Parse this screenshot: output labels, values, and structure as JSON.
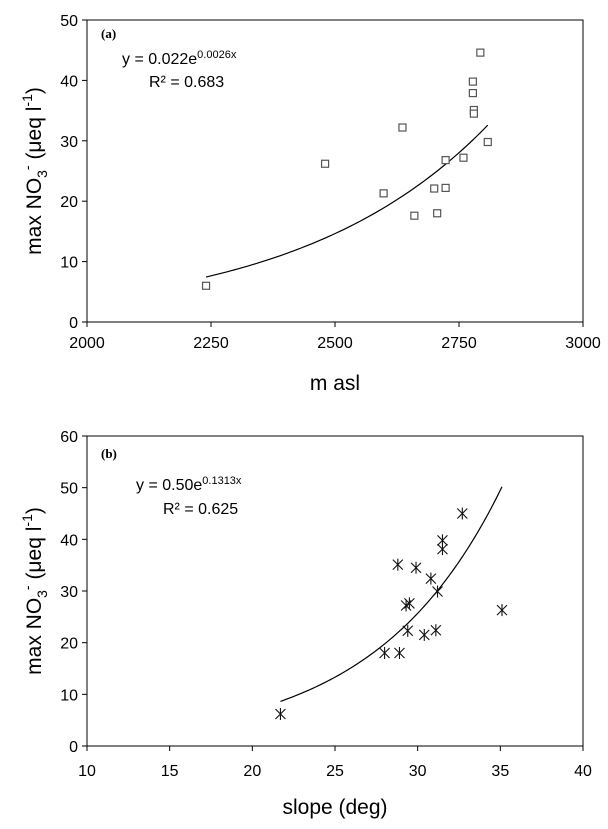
{
  "chart_data": [
    {
      "type": "scatter",
      "panel_label": "(a)",
      "xlabel": "m asl",
      "ylabel": {
        "base": "max NO",
        "sub": "3",
        "sup": "-",
        "rest": " (μeq l",
        "rest_sup": "-1",
        "close": ")"
      },
      "xlim": [
        2000,
        3000
      ],
      "ylim": [
        0,
        50
      ],
      "xticks": [
        2000,
        2250,
        2500,
        2750,
        3000
      ],
      "yticks": [
        0,
        10,
        20,
        30,
        40,
        50
      ],
      "grid": false,
      "marker": "square",
      "points": [
        {
          "x": 2240,
          "y": 6
        },
        {
          "x": 2480,
          "y": 26.2
        },
        {
          "x": 2598,
          "y": 21.3
        },
        {
          "x": 2636,
          "y": 32.2
        },
        {
          "x": 2660,
          "y": 17.6
        },
        {
          "x": 2700,
          "y": 22.1
        },
        {
          "x": 2706,
          "y": 18
        },
        {
          "x": 2723,
          "y": 26.8
        },
        {
          "x": 2723,
          "y": 22.2
        },
        {
          "x": 2759,
          "y": 27.2
        },
        {
          "x": 2778,
          "y": 39.8
        },
        {
          "x": 2778,
          "y": 37.9
        },
        {
          "x": 2780,
          "y": 35.1
        },
        {
          "x": 2780,
          "y": 34.5
        },
        {
          "x": 2793,
          "y": 44.6
        },
        {
          "x": 2808,
          "y": 29.8
        }
      ],
      "trendline": {
        "type": "exponential",
        "a": 0.022,
        "b": 0.0026,
        "x_from": 2240,
        "x_to": 2808
      },
      "equation": {
        "lhs": "y = 0.022e",
        "exp": "0.0026x",
        "r2": "R² = 0.683"
      }
    },
    {
      "type": "scatter",
      "panel_label": "(b)",
      "xlabel": "slope (deg)",
      "ylabel": {
        "base": "max NO",
        "sub": "3",
        "sup": "-",
        "rest": " (μeq l",
        "rest_sup": "-1",
        "close": ")"
      },
      "xlim": [
        10,
        40
      ],
      "ylim": [
        0,
        60
      ],
      "xticks": [
        10,
        15,
        20,
        25,
        30,
        35,
        40
      ],
      "yticks": [
        0,
        10,
        20,
        30,
        40,
        50,
        60
      ],
      "grid": false,
      "marker": "asterisk",
      "points": [
        {
          "x": 21.7,
          "y": 6.2
        },
        {
          "x": 28,
          "y": 18
        },
        {
          "x": 28.9,
          "y": 18
        },
        {
          "x": 28.8,
          "y": 35.1
        },
        {
          "x": 29.3,
          "y": 27.2
        },
        {
          "x": 29.5,
          "y": 27.6
        },
        {
          "x": 29.4,
          "y": 22.3
        },
        {
          "x": 29.9,
          "y": 34.5
        },
        {
          "x": 30.4,
          "y": 21.5
        },
        {
          "x": 30.8,
          "y": 32.4
        },
        {
          "x": 31.1,
          "y": 22.4
        },
        {
          "x": 31.2,
          "y": 29.9
        },
        {
          "x": 31.5,
          "y": 39.8
        },
        {
          "x": 31.5,
          "y": 38.1
        },
        {
          "x": 32.7,
          "y": 45
        },
        {
          "x": 35.1,
          "y": 26.3
        }
      ],
      "trendline": {
        "type": "exponential",
        "a": 0.5,
        "b": 0.1313,
        "x_from": 21.7,
        "x_to": 35.1
      },
      "equation": {
        "lhs": "y = 0.50e",
        "exp": "0.1313x",
        "r2": "R² = 0.625"
      }
    }
  ]
}
